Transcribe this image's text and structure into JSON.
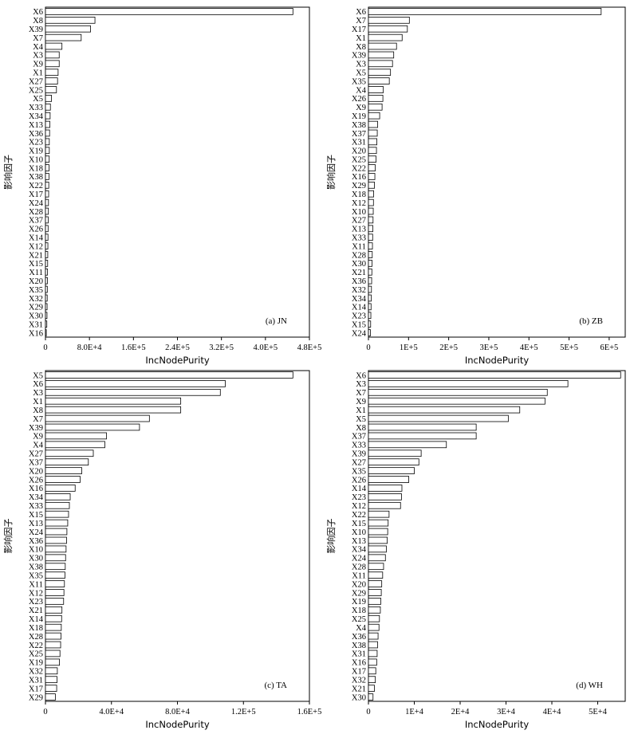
{
  "chart_data": [
    {
      "type": "bar",
      "orientation": "horizontal",
      "panel_label": "(a) JN",
      "xlabel": "IncNodePurity",
      "ylabel": "影响因子",
      "xlim": [
        0,
        480000
      ],
      "xticks": [
        0,
        80000,
        160000,
        240000,
        320000,
        400000,
        480000
      ],
      "xtick_labels": [
        "0",
        "8.0E+4",
        "1.6E+5",
        "2.4E+5",
        "3.2E+5",
        "4.0E+5",
        "4.8E+5"
      ],
      "categories": [
        "X6",
        "X8",
        "X39",
        "X7",
        "X4",
        "X3",
        "X9",
        "X1",
        "X27",
        "X25",
        "X5",
        "X33",
        "X34",
        "X13",
        "X36",
        "X23",
        "X19",
        "X10",
        "X18",
        "X38",
        "X22",
        "X17",
        "X24",
        "X28",
        "X37",
        "X26",
        "X14",
        "X12",
        "X21",
        "X15",
        "X11",
        "X20",
        "X35",
        "X32",
        "X29",
        "X30",
        "X31",
        "X16"
      ],
      "values": [
        450000,
        90000,
        82000,
        65000,
        30000,
        25000,
        25000,
        23000,
        22000,
        20000,
        11000,
        9000,
        8500,
        8000,
        7500,
        7000,
        7000,
        6800,
        6500,
        6300,
        6000,
        5800,
        5500,
        5300,
        5000,
        4800,
        4600,
        4400,
        4200,
        4000,
        3800,
        3600,
        3400,
        3200,
        3000,
        2800,
        2500,
        1500
      ]
    },
    {
      "type": "bar",
      "orientation": "horizontal",
      "panel_label": "(b) ZB",
      "xlabel": "IncNodePurity",
      "ylabel": "影响因子",
      "xlim": [
        0,
        640000
      ],
      "xticks": [
        0,
        100000,
        200000,
        300000,
        400000,
        500000,
        600000
      ],
      "xtick_labels": [
        "0",
        "1E+5",
        "2E+5",
        "3E+5",
        "4E+5",
        "5E+5",
        "6E+5"
      ],
      "categories": [
        "X6",
        "X7",
        "X17",
        "X1",
        "X8",
        "X39",
        "X3",
        "X5",
        "X35",
        "X4",
        "X26",
        "X9",
        "X19",
        "X38",
        "X37",
        "X31",
        "X20",
        "X25",
        "X22",
        "X16",
        "X29",
        "X18",
        "X12",
        "X10",
        "X27",
        "X13",
        "X33",
        "X11",
        "X28",
        "X30",
        "X21",
        "X36",
        "X32",
        "X34",
        "X14",
        "X23",
        "X15",
        "X24"
      ],
      "values": [
        580000,
        102000,
        97000,
        84000,
        70000,
        63000,
        60000,
        55000,
        52000,
        37000,
        36000,
        34000,
        28000,
        23000,
        22000,
        21000,
        20000,
        19000,
        17000,
        16000,
        15000,
        13000,
        12500,
        12000,
        11500,
        11000,
        10500,
        10000,
        9500,
        9000,
        8500,
        8000,
        7500,
        7000,
        6500,
        6000,
        5500,
        5000
      ]
    },
    {
      "type": "bar",
      "orientation": "horizontal",
      "panel_label": "(c) TA",
      "xlabel": "IncNodePurity",
      "ylabel": "影响因子",
      "xlim": [
        0,
        160000
      ],
      "xticks": [
        0,
        40000,
        80000,
        120000,
        160000
      ],
      "xtick_labels": [
        "0",
        "4.0E+4",
        "8.0E+4",
        "1.2E+5",
        "1.6E+5"
      ],
      "categories": [
        "X5",
        "X6",
        "X3",
        "X1",
        "X8",
        "X7",
        "X39",
        "X9",
        "X4",
        "X27",
        "X37",
        "X20",
        "X26",
        "X16",
        "X34",
        "X33",
        "X15",
        "X13",
        "X24",
        "X36",
        "X10",
        "X30",
        "X38",
        "X35",
        "X11",
        "X12",
        "X23",
        "X21",
        "X14",
        "X18",
        "X28",
        "X22",
        "X25",
        "X19",
        "X32",
        "X31",
        "X17",
        "X29"
      ],
      "values": [
        150000,
        109000,
        106000,
        82000,
        82000,
        63000,
        57000,
        37000,
        36000,
        29000,
        26000,
        22000,
        21000,
        18000,
        15000,
        14500,
        14000,
        13500,
        13000,
        12800,
        12500,
        12200,
        12000,
        11800,
        11500,
        11200,
        11000,
        10000,
        9800,
        9600,
        9400,
        9200,
        8800,
        8500,
        7200,
        7000,
        6800,
        6000
      ]
    },
    {
      "type": "bar",
      "orientation": "horizontal",
      "panel_label": "(d) WH",
      "xlabel": "IncNodePurity",
      "ylabel": "影响因子",
      "xlim": [
        0,
        56000
      ],
      "xticks": [
        0,
        10000,
        20000,
        30000,
        40000,
        50000
      ],
      "xtick_labels": [
        "0",
        "1E+4",
        "2E+4",
        "3E+4",
        "4E+4",
        "5E+4"
      ],
      "categories": [
        "X6",
        "X3",
        "X7",
        "X9",
        "X1",
        "X5",
        "X8",
        "X37",
        "X33",
        "X39",
        "X27",
        "X35",
        "X26",
        "X14",
        "X23",
        "X12",
        "X22",
        "X15",
        "X10",
        "X13",
        "X34",
        "X24",
        "X28",
        "X11",
        "X20",
        "X29",
        "X19",
        "X18",
        "X25",
        "X4",
        "X36",
        "X38",
        "X31",
        "X16",
        "X17",
        "X32",
        "X21",
        "X30"
      ],
      "values": [
        55000,
        43500,
        39000,
        38500,
        33000,
        30500,
        23500,
        23500,
        17000,
        11500,
        11000,
        10000,
        8800,
        7300,
        7200,
        7000,
        4500,
        4300,
        4200,
        4100,
        3900,
        3700,
        3300,
        3100,
        2900,
        2800,
        2700,
        2600,
        2400,
        2300,
        2100,
        2000,
        1900,
        1800,
        1600,
        1500,
        1300,
        1000
      ]
    }
  ]
}
